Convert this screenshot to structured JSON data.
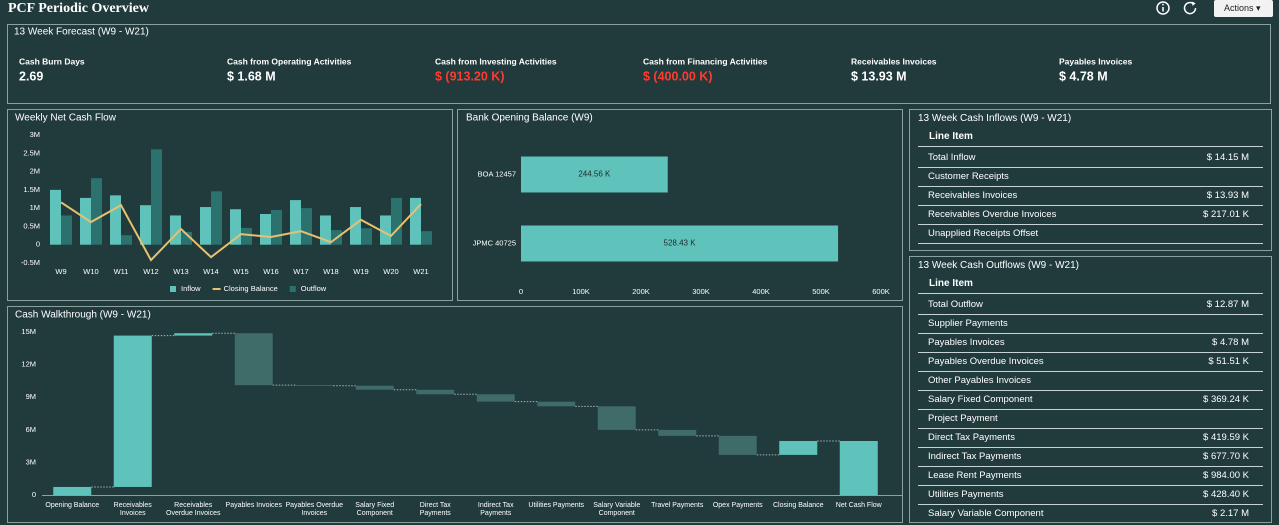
{
  "header": {
    "title": "PCF Periodic Overview",
    "actions": "Actions"
  },
  "kpis": {
    "title": "13 Week Forecast (W9 - W21)",
    "items": [
      {
        "label": "Cash Burn Days",
        "value": "2.69",
        "color": "#ffffff"
      },
      {
        "label": "Cash from Operating Activities",
        "value": "$ 1.68 M",
        "color": "#ffffff"
      },
      {
        "label": "Cash from Investing Activities",
        "value": "$ (913.20 K)",
        "color": "#ff3b30"
      },
      {
        "label": "Cash from Financing Activities",
        "value": "$ (400.00 K)",
        "color": "#ff3b30"
      },
      {
        "label": "Receivables Invoices",
        "value": "$ 13.93 M",
        "color": "#ffffff"
      },
      {
        "label": "Payables Invoices",
        "value": "$ 4.78 M",
        "color": "#ffffff"
      }
    ]
  },
  "chart_data": [
    {
      "type": "bar",
      "title": "Weekly Net Cash Flow",
      "categories": [
        "W9",
        "W10",
        "W11",
        "W12",
        "W13",
        "W14",
        "W15",
        "W16",
        "W17",
        "W18",
        "W19",
        "W20",
        "W21"
      ],
      "series": [
        {
          "name": "Inflow",
          "type": "bar",
          "color": "#5fc3bb",
          "values": [
            1.5,
            1.28,
            1.35,
            1.08,
            0.8,
            1.03,
            0.97,
            0.84,
            1.22,
            0.8,
            1.03,
            0.8,
            1.28
          ]
        },
        {
          "name": "Closing Balance",
          "type": "line",
          "color": "#e8c170",
          "values": [
            1.16,
            0.62,
            1.08,
            -0.42,
            0.43,
            -0.34,
            0.29,
            0.21,
            0.37,
            0.07,
            0.68,
            0.24,
            1.11
          ]
        },
        {
          "name": "Outflow",
          "type": "bar",
          "color": "#2b716d",
          "values": [
            0.8,
            1.82,
            0.26,
            2.61,
            0.35,
            1.46,
            0.46,
            0.95,
            1.0,
            0.4,
            0.45,
            1.28,
            0.37
          ]
        }
      ],
      "ylim": [
        -0.5,
        3
      ],
      "yticks": [
        {
          "value": 3,
          "label": "3M"
        },
        {
          "value": 2.5,
          "label": "2.5M"
        },
        {
          "value": 2,
          "label": "2M"
        },
        {
          "value": 1.5,
          "label": "1.5M"
        },
        {
          "value": 1,
          "label": "1M"
        },
        {
          "value": 0.5,
          "label": "0.5M"
        },
        0,
        {
          "value": -0.5,
          "label": "-0.5M"
        }
      ],
      "legend": "bottom"
    },
    {
      "type": "hbar",
      "title": "Bank Opening Balance (W9)",
      "categories": [
        "BOA 12457",
        "JPMC 40725"
      ],
      "values": [
        244.56,
        528.43
      ],
      "value_labels": [
        "244.56 K",
        "528.43 K"
      ],
      "color": "#5fc3bb",
      "xlim": [
        0,
        600
      ],
      "xticks": [
        0,
        {
          "value": 100,
          "label": "100K"
        },
        {
          "value": 200,
          "label": "200K"
        },
        {
          "value": 300,
          "label": "300K"
        },
        {
          "value": 400,
          "label": "400K"
        },
        {
          "value": 500,
          "label": "500K"
        },
        {
          "value": 600,
          "label": "600K"
        }
      ]
    },
    {
      "type": "waterfall",
      "title": "Cash Walkthrough (W9 - W21)",
      "categories": [
        "Opening Balance",
        "Receivables Invoices",
        "Receivables Overdue Invoices",
        "Payables Invoices",
        "Payables Overdue Invoices",
        "Salary Fixed Component",
        "Direct Tax Payments",
        "Indirect Tax Payments",
        "Utilities Payments",
        "Salary Variable Component",
        "Travel Payments",
        "Opex Payments",
        "Closing Balance",
        "Net Cash Flow"
      ],
      "values": [
        0.74,
        13.93,
        0.217,
        -4.78,
        -0.0515,
        -0.369,
        -0.42,
        -0.678,
        -0.428,
        -2.17,
        -0.55,
        -1.75,
        1.28,
        4.97
      ],
      "kinds": [
        "total",
        "delta",
        "delta",
        "delta",
        "delta",
        "delta",
        "delta",
        "delta",
        "delta",
        "delta",
        "delta",
        "delta",
        "delta",
        "total"
      ],
      "colors": {
        "increase": "#5fc3bb",
        "decrease": "#3f6b69",
        "total": "#5fc3bb"
      },
      "ylim": [
        0,
        15
      ],
      "yticks": [
        {
          "value": 15,
          "label": "15M"
        },
        {
          "value": 12,
          "label": "12M"
        },
        {
          "value": 9,
          "label": "9M"
        },
        {
          "value": 6,
          "label": "6M"
        },
        {
          "value": 3,
          "label": "3M"
        },
        0
      ]
    }
  ],
  "inflows": {
    "title": "13 Week Cash Inflows (W9 - W21)",
    "header": "Line Item",
    "rows": [
      {
        "label": "Total Inflow",
        "value": "$ 14.15 M"
      },
      {
        "label": "Customer Receipts"
      },
      {
        "label": "Receivables Invoices",
        "value": "$ 13.93 M"
      },
      {
        "label": "Receivables Overdue Invoices",
        "value": "$ 217.01 K"
      },
      {
        "label": "Unapplied Receipts Offset"
      }
    ]
  },
  "outflows": {
    "title": "13 Week Cash Outflows (W9 - W21)",
    "header": "Line Item",
    "rows": [
      {
        "label": "Total Outflow",
        "value": "$ 12.87 M"
      },
      {
        "label": "Supplier Payments"
      },
      {
        "label": "Payables Invoices",
        "value": "$ 4.78 M"
      },
      {
        "label": "Payables Overdue Invoices",
        "value": "$ 51.51 K"
      },
      {
        "label": "Other Payables Invoices"
      },
      {
        "label": "Salary Fixed Component",
        "value": "$ 369.24 K"
      },
      {
        "label": "Project Payment"
      },
      {
        "label": "Direct Tax Payments",
        "value": "$ 419.59 K"
      },
      {
        "label": "Indirect Tax Payments",
        "value": "$ 677.70 K"
      },
      {
        "label": "Lease Rent Payments",
        "value": "$ 984.00 K"
      },
      {
        "label": "Utilities Payments",
        "value": "$ 428.40 K"
      },
      {
        "label": "Salary Variable Component",
        "value": "$ 2.17 M"
      }
    ]
  }
}
